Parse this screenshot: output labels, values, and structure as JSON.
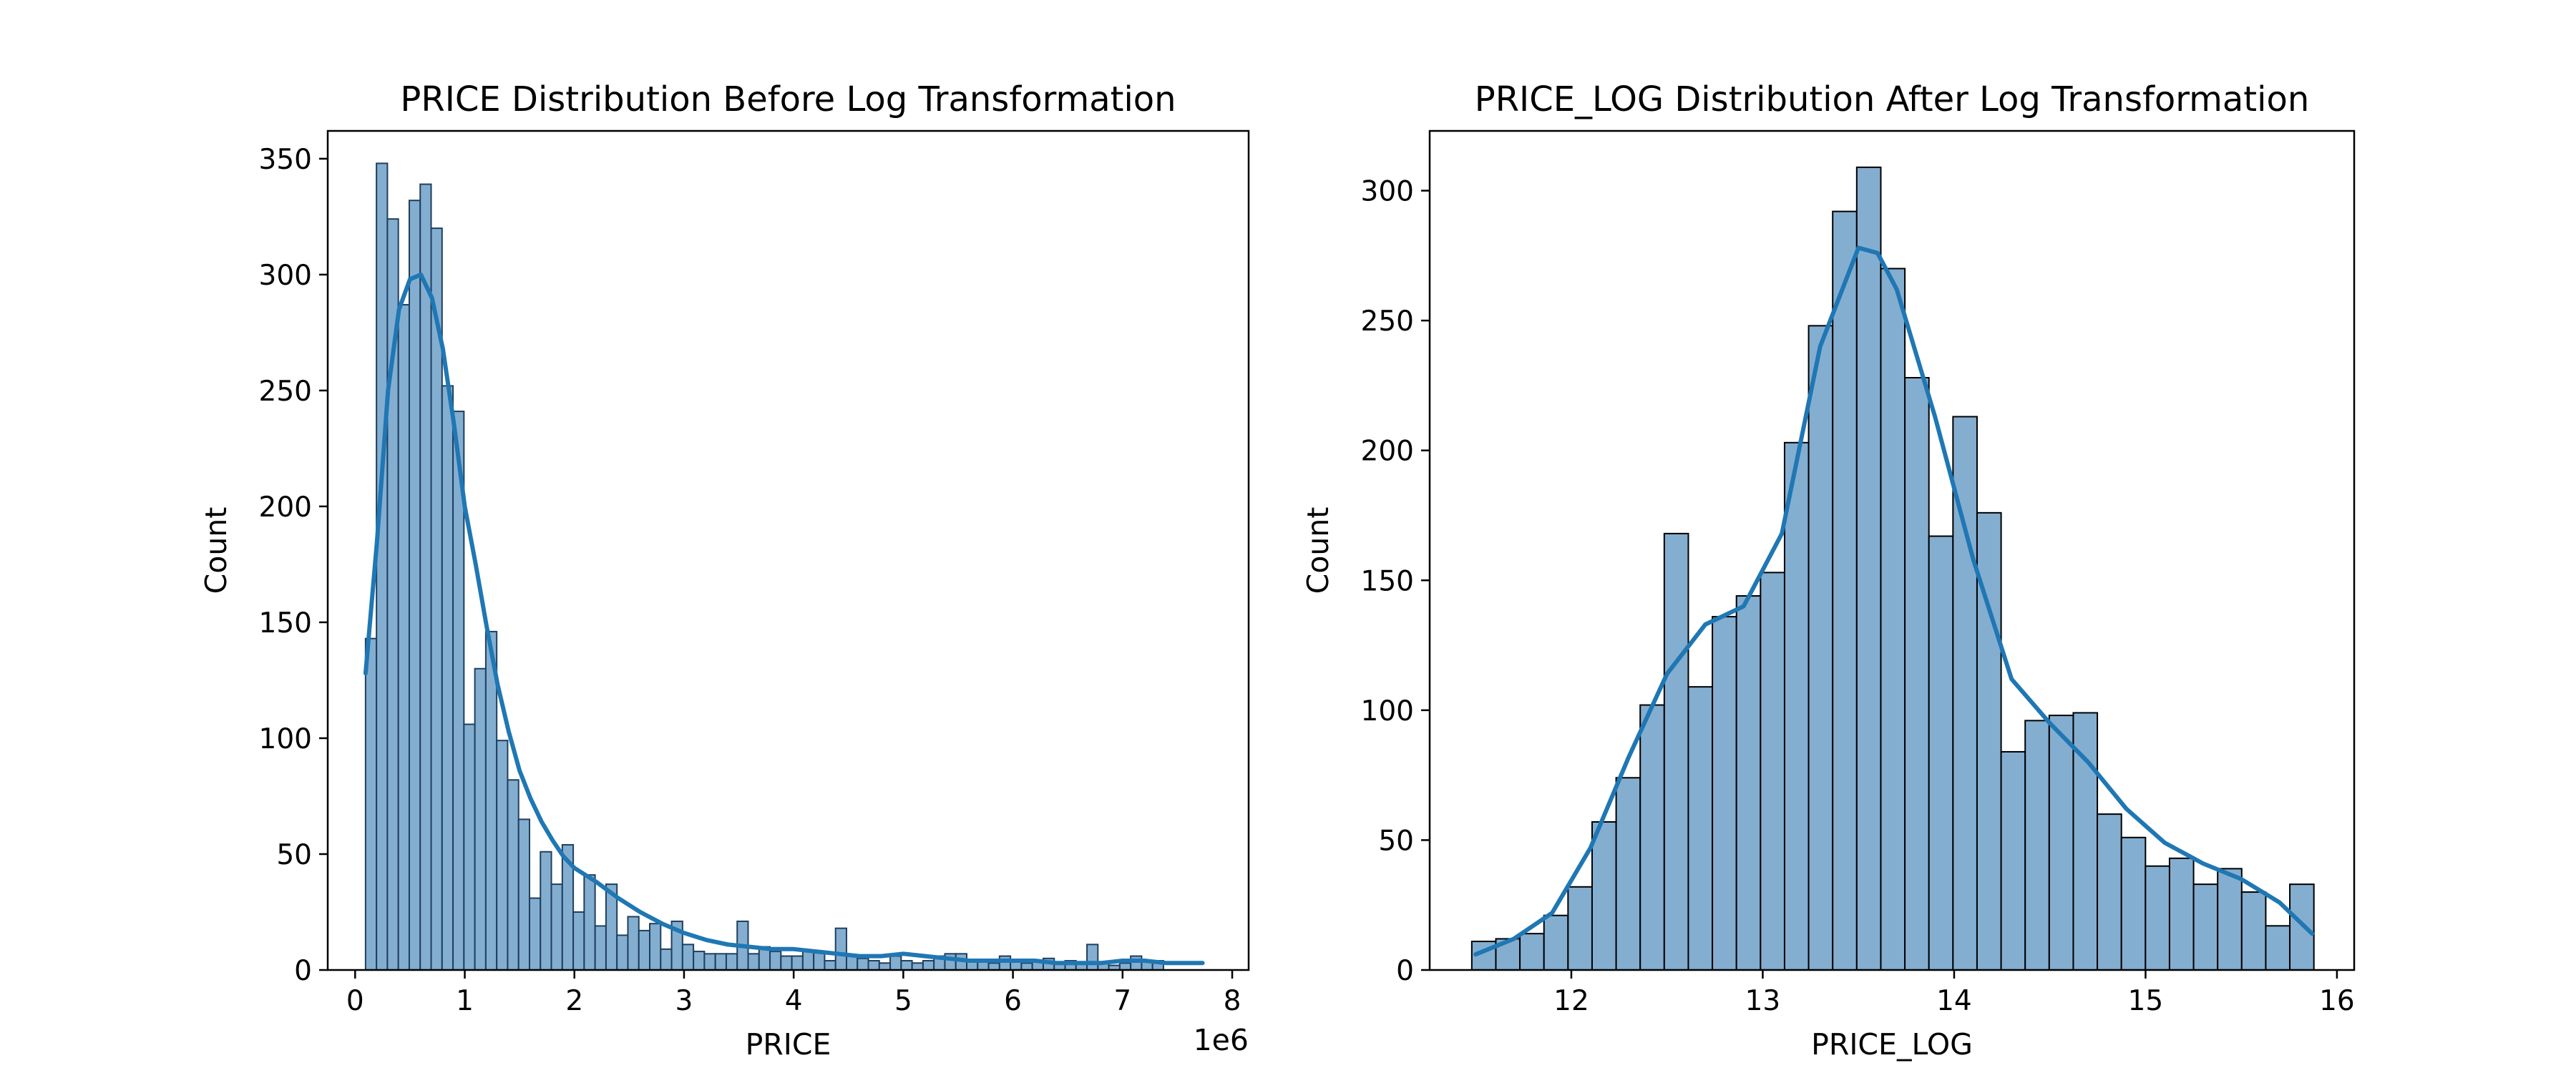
{
  "chart_data": [
    {
      "type": "bar",
      "title": "PRICE Distribution Before Log Transformation",
      "xlabel": "PRICE",
      "ylabel": "Count",
      "x_offset_text": "1e6",
      "xlim": [
        -0.25,
        8.15
      ],
      "ylim": [
        0,
        362
      ],
      "xticks": [
        0,
        1,
        2,
        3,
        4,
        5,
        6,
        7,
        8
      ],
      "yticks": [
        0,
        50,
        100,
        150,
        200,
        250,
        300,
        350
      ],
      "bin_start": 0.095,
      "bin_width": 0.0997,
      "values": [
        143,
        348,
        324,
        287,
        332,
        339,
        320,
        252,
        241,
        106,
        130,
        146,
        99,
        82,
        65,
        31,
        51,
        37,
        54,
        25,
        41,
        19,
        37,
        15,
        23,
        17,
        20,
        9,
        21,
        11,
        8,
        7,
        7,
        7,
        21,
        7,
        10,
        8,
        6,
        6,
        8,
        8,
        4,
        18,
        6,
        5,
        4,
        3,
        6,
        4,
        3,
        4,
        6,
        7,
        7,
        4,
        4,
        3,
        6,
        4,
        3,
        4,
        5,
        3,
        4,
        3,
        11,
        3,
        2,
        3,
        6,
        4,
        4
      ],
      "kde": {
        "x": [
          0.095,
          0.2,
          0.3,
          0.4,
          0.5,
          0.6,
          0.7,
          0.8,
          0.9,
          1.0,
          1.1,
          1.2,
          1.3,
          1.4,
          1.5,
          1.6,
          1.7,
          1.8,
          1.9,
          2.0,
          2.2,
          2.4,
          2.6,
          2.8,
          3.0,
          3.2,
          3.4,
          3.6,
          3.8,
          4.0,
          4.2,
          4.4,
          4.6,
          4.8,
          5.0,
          5.2,
          5.4,
          5.6,
          5.8,
          6.0,
          6.2,
          6.4,
          6.6,
          6.8,
          7.0,
          7.2,
          7.4,
          7.6,
          7.73
        ],
        "y": [
          128,
          185,
          250,
          285,
          298,
          300,
          290,
          268,
          236,
          200,
          175,
          148,
          123,
          103,
          86,
          74,
          64,
          56,
          49,
          44,
          38,
          31,
          25,
          20,
          16,
          13,
          11,
          10,
          9,
          9,
          8,
          7,
          6,
          6,
          7,
          6,
          5,
          4,
          4,
          4,
          4,
          3,
          3,
          3,
          4,
          4,
          3,
          3,
          3
        ]
      },
      "colors": {
        "bar_fill": "#84aed0",
        "bar_edge": "#1f3f5e",
        "kde": "#1f77b4"
      }
    },
    {
      "type": "bar",
      "title": "PRICE_LOG Distribution After Log Transformation",
      "xlabel": "PRICE_LOG",
      "ylabel": "Count",
      "xlim": [
        11.26,
        16.09
      ],
      "ylim": [
        0,
        323
      ],
      "xticks": [
        12,
        13,
        14,
        15,
        16
      ],
      "yticks": [
        0,
        50,
        100,
        150,
        200,
        250,
        300
      ],
      "bin_start": 11.48,
      "bin_width": 0.1257,
      "values": [
        11,
        12,
        14,
        21,
        32,
        57,
        74,
        102,
        168,
        109,
        136,
        144,
        153,
        203,
        248,
        292,
        309,
        270,
        228,
        167,
        213,
        176,
        84,
        96,
        98,
        99,
        60,
        51,
        40,
        43,
        33,
        39,
        30,
        17,
        33
      ],
      "kde": {
        "x": [
          11.5,
          11.7,
          11.9,
          12.1,
          12.3,
          12.5,
          12.7,
          12.9,
          13.1,
          13.3,
          13.5,
          13.6,
          13.7,
          13.9,
          14.1,
          14.3,
          14.5,
          14.7,
          14.9,
          15.1,
          15.3,
          15.5,
          15.7,
          15.87
        ],
        "y": [
          6,
          12,
          22,
          47,
          82,
          114,
          133,
          140,
          168,
          240,
          278,
          276,
          262,
          213,
          158,
          112,
          95,
          80,
          62,
          49,
          41,
          35,
          26,
          14
        ]
      },
      "colors": {
        "bar_fill": "#84aed0",
        "bar_edge": "#000000",
        "kde": "#1f77b4"
      }
    }
  ]
}
